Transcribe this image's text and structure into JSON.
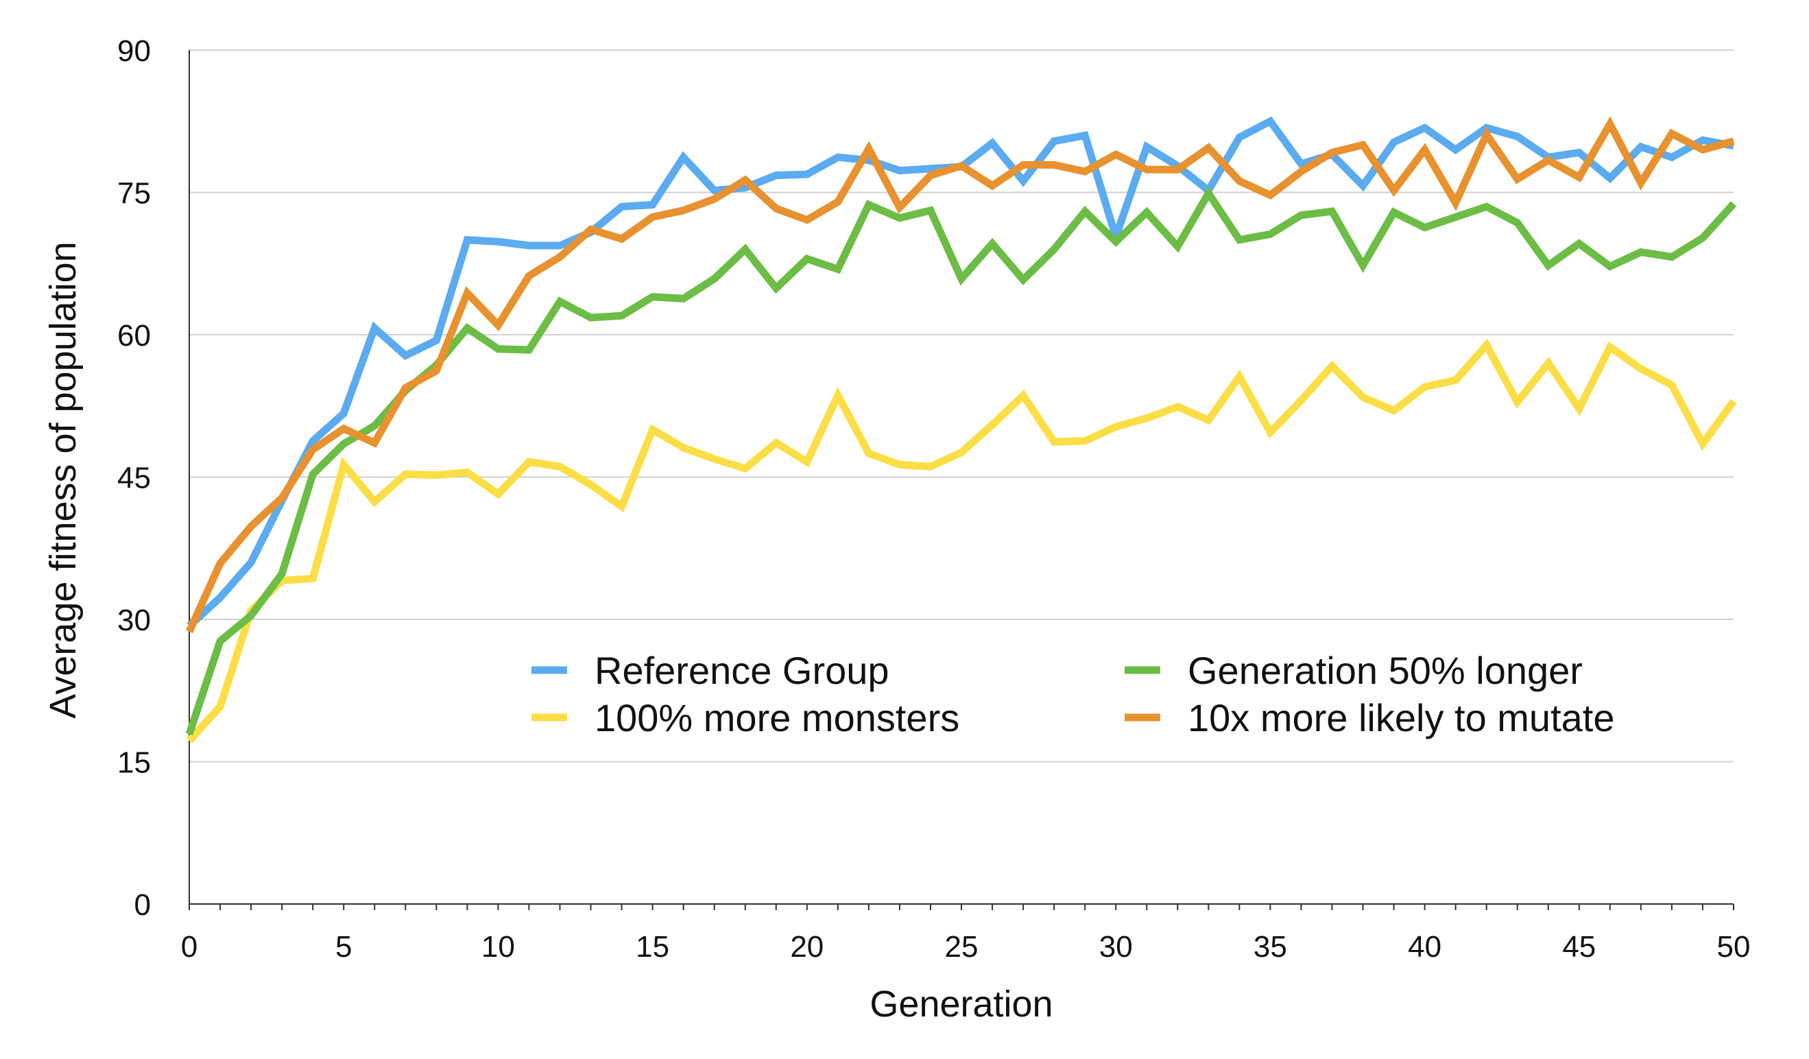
{
  "chart_data": {
    "type": "line",
    "title": "",
    "xlabel": "Generation",
    "ylabel": "Average fitness of population",
    "xlim": [
      0,
      50
    ],
    "ylim": [
      0,
      90
    ],
    "xticks": [
      0,
      5,
      10,
      15,
      20,
      25,
      30,
      35,
      40,
      45,
      50
    ],
    "yticks": [
      0,
      15,
      30,
      45,
      60,
      75,
      90
    ],
    "grid": "horizontal",
    "legend_position": "lower-right inside plot, two columns",
    "x": [
      0,
      1,
      2,
      3,
      4,
      5,
      6,
      7,
      8,
      9,
      10,
      11,
      12,
      13,
      14,
      15,
      16,
      17,
      18,
      19,
      20,
      21,
      22,
      23,
      24,
      25,
      26,
      27,
      28,
      29,
      30,
      31,
      32,
      33,
      34,
      35,
      36,
      37,
      38,
      39,
      40,
      41,
      42,
      43,
      44,
      45,
      46,
      47,
      48,
      49,
      50
    ],
    "series": [
      {
        "name": "Reference Group",
        "color": "#5aabf0",
        "values": [
          29.3,
          32.3,
          36.0,
          42.5,
          48.8,
          51.7,
          60.7,
          57.8,
          59.4,
          70.0,
          69.8,
          69.4,
          69.4,
          70.8,
          73.5,
          73.7,
          78.7,
          75.2,
          75.5,
          76.8,
          76.9,
          78.7,
          78.4,
          77.3,
          77.5,
          77.7,
          80.2,
          76.2,
          80.4,
          81.0,
          70.3,
          79.8,
          77.8,
          75.2,
          80.8,
          82.5,
          78.0,
          79.0,
          75.7,
          80.3,
          81.8,
          79.5,
          81.8,
          80.9,
          78.7,
          79.2,
          76.5,
          79.8,
          78.7,
          80.5,
          79.9
        ]
      },
      {
        "name": "100% more monsters",
        "color": "#fbde45",
        "values": [
          17.2,
          20.8,
          30.9,
          34.1,
          34.3,
          46.3,
          42.4,
          45.3,
          45.2,
          45.5,
          43.2,
          46.6,
          46.1,
          44.2,
          41.9,
          50.0,
          48.1,
          46.9,
          45.9,
          48.6,
          46.6,
          53.6,
          47.5,
          46.3,
          46.1,
          47.6,
          50.5,
          53.6,
          48.7,
          48.8,
          50.3,
          51.2,
          52.4,
          51.0,
          55.6,
          49.7,
          53.1,
          56.7,
          53.4,
          52.0,
          54.5,
          55.2,
          58.9,
          52.9,
          57.0,
          52.2,
          58.7,
          56.4,
          54.7,
          48.5,
          53.0
        ]
      },
      {
        "name": "Generation 50% longer",
        "color": "#6cbd45",
        "values": [
          17.9,
          27.7,
          30.4,
          34.8,
          45.3,
          48.5,
          50.4,
          54.1,
          56.8,
          60.7,
          58.5,
          58.4,
          63.5,
          61.8,
          62.0,
          64.0,
          63.8,
          65.9,
          69.0,
          64.9,
          68.0,
          66.9,
          73.7,
          72.3,
          73.1,
          65.9,
          69.6,
          65.8,
          69.0,
          73.0,
          69.8,
          72.9,
          69.3,
          74.9,
          70.0,
          70.6,
          72.6,
          73.0,
          67.3,
          72.9,
          71.3,
          72.4,
          73.5,
          71.8,
          67.3,
          69.6,
          67.2,
          68.7,
          68.2,
          70.2,
          73.8
        ]
      },
      {
        "name": "10x more likely to mutate",
        "color": "#e8912f",
        "values": [
          28.7,
          35.9,
          39.8,
          42.8,
          47.9,
          50.1,
          48.6,
          54.4,
          56.2,
          64.4,
          61.0,
          66.2,
          68.2,
          71.1,
          70.1,
          72.4,
          73.1,
          74.3,
          76.3,
          73.3,
          72.1,
          74.0,
          79.6,
          73.4,
          76.8,
          77.8,
          75.7,
          77.9,
          77.9,
          77.2,
          79.0,
          77.4,
          77.4,
          79.7,
          76.2,
          74.7,
          77.2,
          79.2,
          80.0,
          75.2,
          79.5,
          73.9,
          81.1,
          76.4,
          78.4,
          76.6,
          82.2,
          76.0,
          81.2,
          79.5,
          80.4
        ]
      }
    ]
  }
}
